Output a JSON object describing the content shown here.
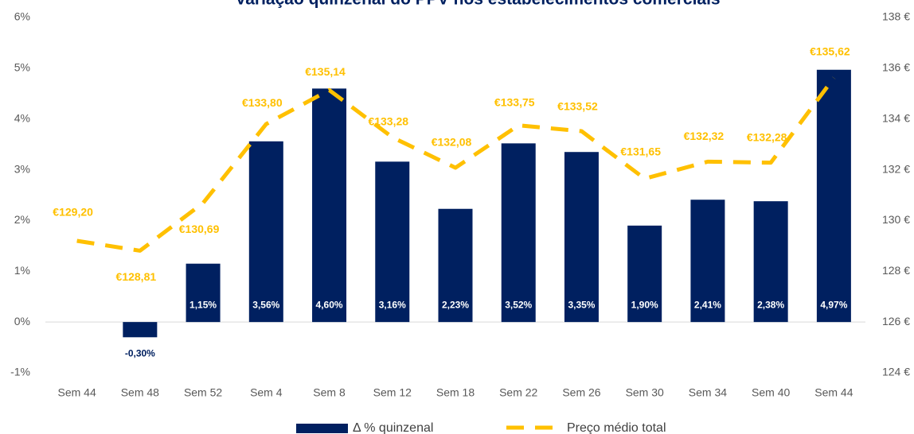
{
  "chart_data": {
    "type": "bar_line",
    "title": "Variação quinzenal do PPV nos estabelecimentos comerciais",
    "categories": [
      "Sem 44",
      "Sem 48",
      "Sem 52",
      "Sem 4",
      "Sem 8",
      "Sem 12",
      "Sem 18",
      "Sem 22",
      "Sem 26",
      "Sem 30",
      "Sem 34",
      "Sem 40",
      "Sem 44"
    ],
    "series": [
      {
        "name": "Δ % quinzenal",
        "color": "#002060",
        "kind": "bar",
        "axis": "y",
        "values": [
          null,
          -0.3,
          1.15,
          3.56,
          4.6,
          3.16,
          2.23,
          3.52,
          3.35,
          1.9,
          2.41,
          2.38,
          4.97
        ],
        "value_labels": [
          null,
          "-0,30%",
          "1,15%",
          "3,56%",
          "4,60%",
          "3,16%",
          "2,23%",
          "3,52%",
          "3,35%",
          "1,90%",
          "2,41%",
          "2,38%",
          "4,97%"
        ]
      },
      {
        "name": "Preço médio total",
        "color": "#FFC000",
        "kind": "line",
        "axis": "y2",
        "values": [
          129.2,
          128.81,
          130.69,
          133.8,
          135.14,
          133.28,
          132.08,
          133.75,
          133.52,
          131.65,
          132.32,
          132.28,
          135.62
        ],
        "value_labels": [
          "€129,20",
          "€128,81",
          "€130,69",
          "€133,80",
          "€135,14",
          "€133,28",
          "€132,08",
          "€133,75",
          "€133,52",
          "€131,65",
          "€132,32",
          "€132,28",
          "€135,62"
        ]
      }
    ],
    "ylim": [
      -1,
      6
    ],
    "yticks": [
      {
        "value": -1,
        "label": "-1%"
      },
      {
        "value": 0,
        "label": "0%"
      },
      {
        "value": 1,
        "label": "1%"
      },
      {
        "value": 2,
        "label": "2%"
      },
      {
        "value": 3,
        "label": "3%"
      },
      {
        "value": 4,
        "label": "4%"
      },
      {
        "value": 5,
        "label": "5%"
      },
      {
        "value": 6,
        "label": "6%"
      }
    ],
    "y2lim": [
      124,
      138
    ],
    "y2ticks": [
      {
        "value": 124,
        "label": "124 €"
      },
      {
        "value": 126,
        "label": "126 €"
      },
      {
        "value": 128,
        "label": "128 €"
      },
      {
        "value": 130,
        "label": "130 €"
      },
      {
        "value": 132,
        "label": "132 €"
      },
      {
        "value": 134,
        "label": "134 €"
      },
      {
        "value": 136,
        "label": "136 €"
      },
      {
        "value": 138,
        "label": "138 €"
      }
    ],
    "grid": false
  }
}
